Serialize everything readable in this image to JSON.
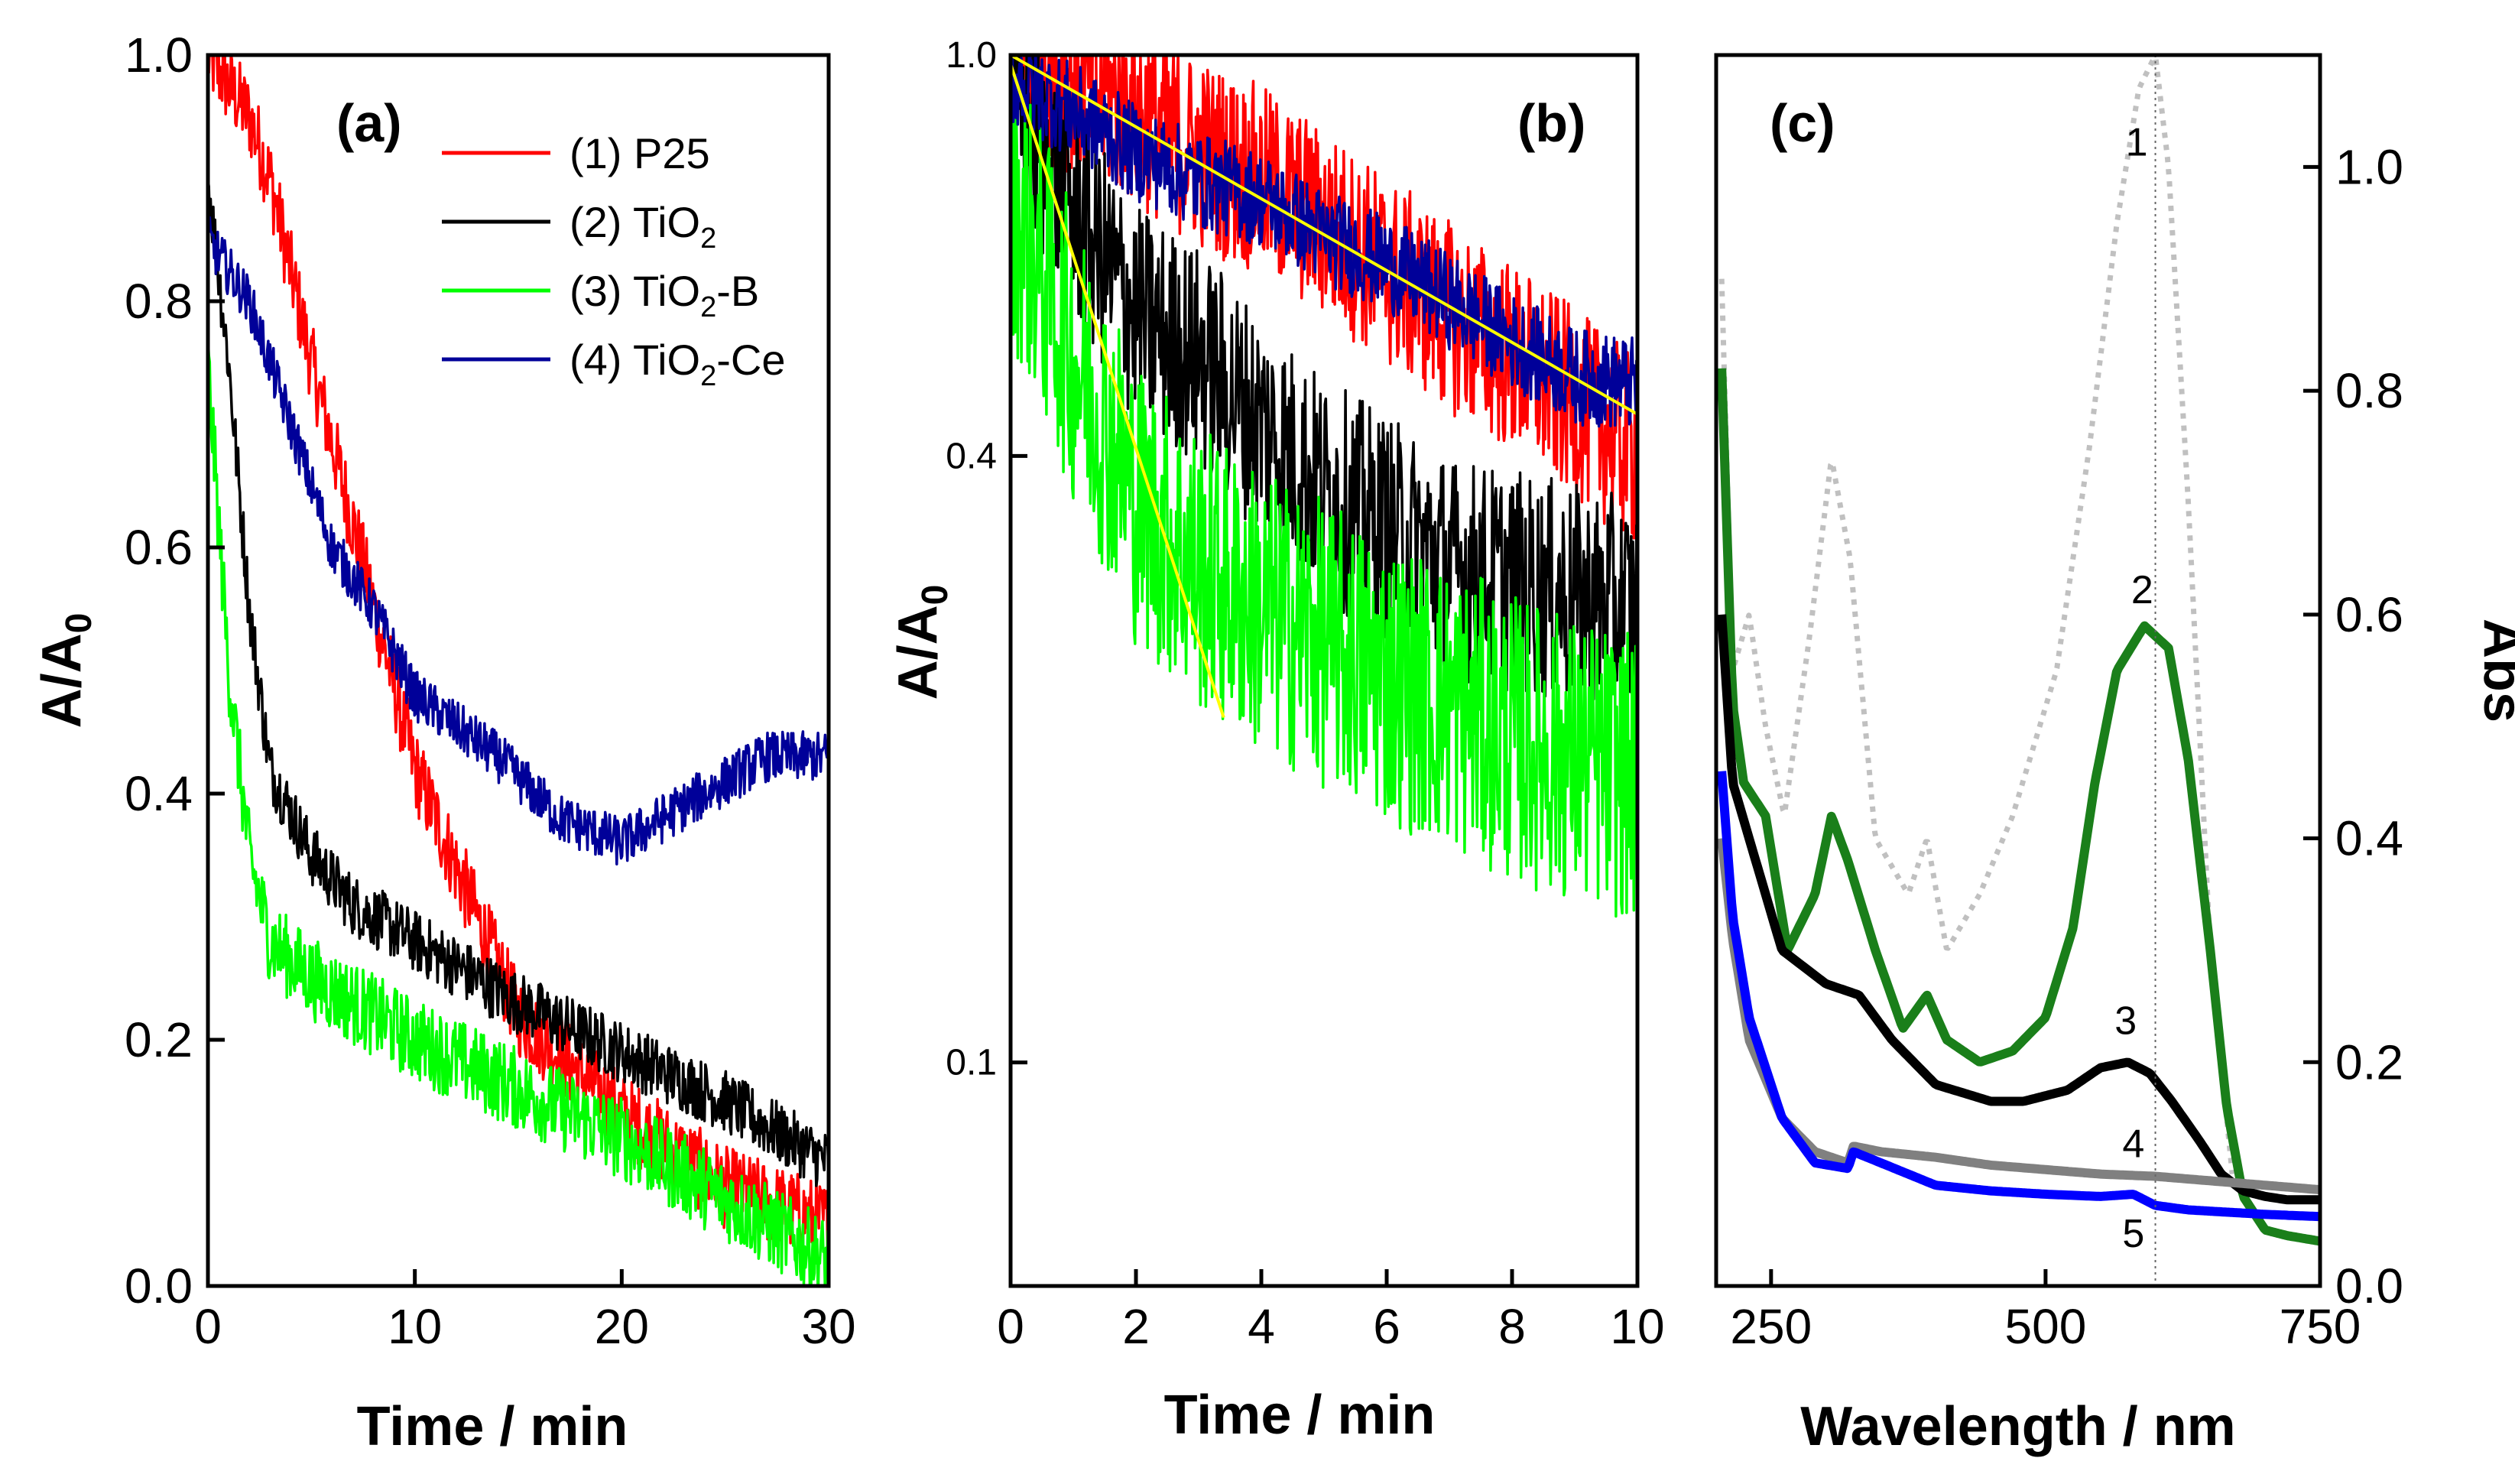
{
  "chart_data": [
    {
      "type": "line",
      "panel": "(a)",
      "xlabel": "Time / min",
      "ylabel": "A/A",
      "ylabel_sub": "0",
      "xlim": [
        0,
        30
      ],
      "ylim": [
        0,
        1
      ],
      "xticks": [
        0,
        10,
        20,
        30
      ],
      "yticks": [
        0.0,
        0.2,
        0.4,
        0.6,
        0.8,
        1.0
      ],
      "ytick_labels": [
        "0.0",
        "0.2",
        "0.4",
        "0.6",
        "0.8",
        "1.0"
      ],
      "legend": [
        {
          "num": "(1)",
          "name": "P25",
          "sub": "",
          "suffix": "",
          "color": "#ff0000"
        },
        {
          "num": "(2)",
          "name": "TiO",
          "sub": "2",
          "suffix": "",
          "color": "#000000"
        },
        {
          "num": "(3)",
          "name": "TiO",
          "sub": "2",
          "suffix": "-B",
          "color": "#00ff00"
        },
        {
          "num": "(4)",
          "name": "TiO",
          "sub": "2",
          "suffix": "-Ce",
          "color": "#000099"
        }
      ],
      "series": [
        {
          "name": "P25",
          "color": "#ff0000",
          "noise": 0.02,
          "x": [
            0,
            2,
            3,
            5,
            7,
            10,
            15,
            20,
            25,
            30
          ],
          "y": [
            1.0,
            0.95,
            0.9,
            0.75,
            0.62,
            0.42,
            0.22,
            0.14,
            0.08,
            0.05
          ]
        },
        {
          "name": "TiO2",
          "color": "#000000",
          "noise": 0.015,
          "x": [
            0,
            1,
            2,
            3,
            5,
            7,
            10,
            15,
            20,
            25,
            30
          ],
          "y": [
            0.9,
            0.75,
            0.55,
            0.42,
            0.35,
            0.31,
            0.28,
            0.23,
            0.19,
            0.15,
            0.1
          ]
        },
        {
          "name": "TiO2-B",
          "color": "#00ff00",
          "noise": 0.02,
          "x": [
            0,
            1,
            2,
            3,
            5,
            10,
            15,
            20,
            25,
            30
          ],
          "y": [
            0.75,
            0.5,
            0.35,
            0.28,
            0.25,
            0.2,
            0.16,
            0.12,
            0.07,
            0.02
          ]
        },
        {
          "name": "TiO2-Ce",
          "color": "#000099",
          "noise": 0.012,
          "x": [
            0,
            2,
            4,
            6,
            8,
            10,
            14,
            17,
            20,
            24,
            27,
            30
          ],
          "y": [
            0.85,
            0.8,
            0.7,
            0.6,
            0.55,
            0.48,
            0.43,
            0.38,
            0.36,
            0.4,
            0.43,
            0.43
          ]
        }
      ]
    },
    {
      "type": "line",
      "panel": "(b)",
      "yscale": "log",
      "xlabel": "Time / min",
      "ylabel": "A/A",
      "ylabel_sub": "0",
      "xlim": [
        0,
        10
      ],
      "ylim": [
        0.06,
        1.0
      ],
      "xticks": [
        0,
        2,
        4,
        6,
        8,
        10
      ],
      "yticks": [
        0.1,
        0.4,
        1.0
      ],
      "ytick_labels": [
        "0.1",
        "0.4",
        "1.0"
      ],
      "series": [
        {
          "name": "P25",
          "color": "#ff0000",
          "noise": 0.06,
          "x": [
            0,
            1,
            2,
            3,
            4,
            5,
            6,
            7,
            8,
            9,
            10
          ],
          "y": [
            1.0,
            0.95,
            0.88,
            0.8,
            0.75,
            0.68,
            0.61,
            0.55,
            0.5,
            0.45,
            0.4
          ]
        },
        {
          "name": "TiO2",
          "color": "#000000",
          "noise": 0.07,
          "x": [
            0,
            1,
            2,
            3,
            4,
            5,
            6,
            7,
            8,
            10
          ],
          "y": [
            0.9,
            0.7,
            0.55,
            0.5,
            0.43,
            0.37,
            0.34,
            0.31,
            0.3,
            0.28
          ]
        },
        {
          "name": "TiO2-B",
          "color": "#00ff00",
          "noise": 0.09,
          "x": [
            0,
            1,
            2,
            3,
            4,
            5,
            6,
            8,
            10
          ],
          "y": [
            0.72,
            0.5,
            0.36,
            0.31,
            0.28,
            0.26,
            0.24,
            0.21,
            0.19
          ]
        },
        {
          "name": "TiO2-Ce",
          "color": "#000099",
          "noise": 0.03,
          "x": [
            0,
            1,
            2,
            3,
            4,
            5,
            6,
            7,
            8,
            9,
            10
          ],
          "y": [
            0.95,
            0.88,
            0.8,
            0.75,
            0.72,
            0.66,
            0.62,
            0.57,
            0.52,
            0.48,
            0.47
          ]
        }
      ],
      "fits": [
        {
          "name": "fit-P25",
          "color": "#ffff00",
          "x": [
            0,
            10
          ],
          "y": [
            1.0,
            0.44
          ]
        },
        {
          "name": "fit-TiO2-B",
          "color": "#ffff00",
          "x": [
            0,
            3.4
          ],
          "y": [
            0.98,
            0.22
          ]
        }
      ]
    },
    {
      "type": "line",
      "panel": "(c)",
      "xlabel": "Wavelength / nm",
      "ylabel": "Abs",
      "ylabel_position": "right",
      "xlim": [
        200,
        750
      ],
      "ylim": [
        0,
        1.1
      ],
      "xticks": [
        250,
        500,
        750
      ],
      "yticks": [
        0.0,
        0.2,
        0.4,
        0.6,
        0.8,
        1.0
      ],
      "ytick_labels": [
        "0.0",
        "0.2",
        "0.4",
        "0.6",
        "0.8",
        "1.0"
      ],
      "reference_line_x": 600,
      "series": [
        {
          "name": "1",
          "color": "#c0c0c0",
          "style": "dotted",
          "x": [
            205,
            215,
            230,
            245,
            262,
            285,
            305,
            322,
            345,
            375,
            392,
            410,
            440,
            470,
            510,
            540,
            565,
            585,
            600,
            612,
            630,
            650,
            670
          ],
          "y": [
            0.9,
            0.55,
            0.6,
            0.5,
            0.42,
            0.58,
            0.74,
            0.65,
            0.4,
            0.35,
            0.4,
            0.3,
            0.35,
            0.42,
            0.55,
            0.75,
            0.95,
            1.07,
            1.1,
            1.0,
            0.7,
            0.3,
            0.1
          ]
        },
        {
          "name": "2",
          "color": "#1a7f1a",
          "style": "thick",
          "x": [
            205,
            215,
            225,
            245,
            265,
            290,
            305,
            320,
            345,
            370,
            392,
            410,
            440,
            470,
            500,
            525,
            545,
            565,
            590,
            612,
            630,
            650,
            665,
            680,
            700,
            720,
            750
          ],
          "y": [
            0.82,
            0.52,
            0.45,
            0.42,
            0.3,
            0.35,
            0.42,
            0.38,
            0.3,
            0.23,
            0.26,
            0.22,
            0.2,
            0.21,
            0.24,
            0.32,
            0.45,
            0.55,
            0.59,
            0.57,
            0.47,
            0.3,
            0.16,
            0.08,
            0.05,
            0.045,
            0.04
          ]
        },
        {
          "name": "3",
          "color": "#000000",
          "style": "thick",
          "x": [
            205,
            215,
            230,
            260,
            300,
            330,
            360,
            400,
            450,
            480,
            520,
            550,
            575,
            595,
            615,
            640,
            660,
            680,
            700,
            720,
            750
          ],
          "y": [
            0.6,
            0.45,
            0.4,
            0.3,
            0.27,
            0.26,
            0.22,
            0.18,
            0.165,
            0.165,
            0.175,
            0.195,
            0.2,
            0.19,
            0.165,
            0.13,
            0.1,
            0.085,
            0.08,
            0.077,
            0.077
          ]
        },
        {
          "name": "4",
          "color": "#808080",
          "style": "thick",
          "x": [
            205,
            215,
            230,
            260,
            290,
            320,
            325,
            350,
            400,
            450,
            500,
            550,
            600,
            650,
            700,
            750
          ],
          "y": [
            0.4,
            0.31,
            0.22,
            0.15,
            0.12,
            0.11,
            0.125,
            0.12,
            0.115,
            0.108,
            0.104,
            0.1,
            0.098,
            0.094,
            0.09,
            0.086
          ]
        },
        {
          "name": "5",
          "color": "#0000ff",
          "style": "thick",
          "x": [
            205,
            215,
            230,
            260,
            290,
            320,
            325,
            350,
            400,
            450,
            500,
            550,
            580,
            600,
            630,
            700,
            750
          ],
          "y": [
            0.46,
            0.33,
            0.24,
            0.15,
            0.11,
            0.105,
            0.12,
            0.11,
            0.09,
            0.085,
            0.082,
            0.08,
            0.082,
            0.072,
            0.068,
            0.064,
            0.062
          ]
        }
      ],
      "curve_labels": [
        {
          "text": "1",
          "x": 583,
          "y": 1.01
        },
        {
          "text": "2",
          "x": 588,
          "y": 0.61
        },
        {
          "text": "3",
          "x": 573,
          "y": 0.225
        },
        {
          "text": "4",
          "x": 580,
          "y": 0.115
        },
        {
          "text": "5",
          "x": 580,
          "y": 0.035
        }
      ]
    }
  ]
}
